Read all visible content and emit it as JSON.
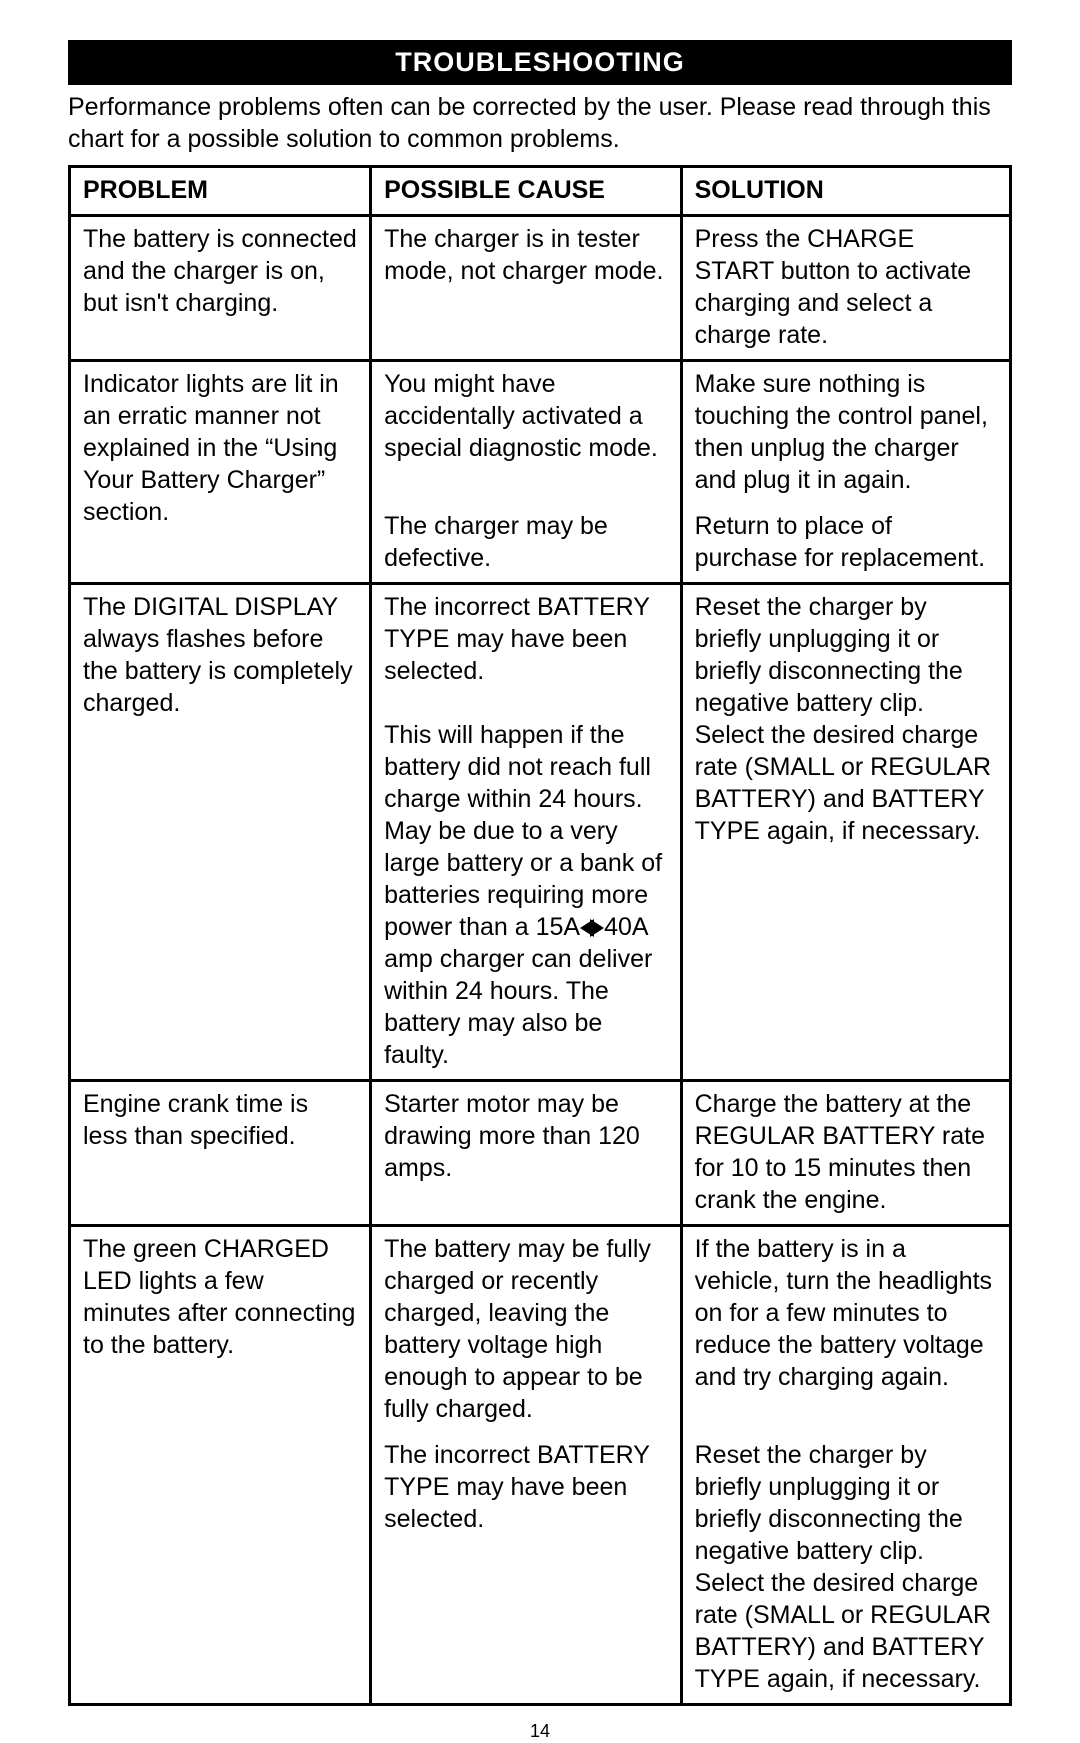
{
  "section_title": "TROUBLESHOOTING",
  "intro": "Performance problems often can be corrected by the user. Please read through this chart for a possible solution to common problems.",
  "headers": {
    "problem": "PROBLEM",
    "cause": "POSSIBLE CAUSE",
    "solution": "SOLUTION"
  },
  "rows": {
    "r1": {
      "problem": "The battery is connected and the charger is on, but isn't charging.",
      "cause": "The charger is in tester mode, not charger mode.",
      "solution": "Press the CHARGE START button to activate charging and select a charge rate."
    },
    "r2a": {
      "problem": "Indicator lights are lit in an erratic manner not explained in the “Using Your Battery Charger” section.",
      "cause": "You might have accidentally activated a special diagnostic mode.",
      "solution": "Make sure nothing is touching the control panel, then unplug the charger and plug it in again."
    },
    "r2b": {
      "cause": "The charger may be defective.",
      "solution": "Return to place of purchase for replacement."
    },
    "r3": {
      "problem": "The DIGITAL DISPLAY always flashes before the battery is completely charged.",
      "cause_p1": "The incorrect BATTERY TYPE may have been selected.",
      "cause_p2a": "This will happen if the battery did not reach full charge within 24 hours. May be due to a very large battery or a bank of batteries requiring more power than a 15A",
      "cause_p2b": "40A amp charger can deliver within 24 hours. The battery may also be faulty.",
      "solution": "Reset the charger by briefly unplugging it or briefly disconnecting the negative battery clip. Select the desired charge rate (SMALL or REGULAR BATTERY) and BATTERY TYPE again, if necessary."
    },
    "r4": {
      "problem": "Engine crank time is less than specified.",
      "cause": "Starter motor may be drawing more than 120 amps.",
      "solution": "Charge the battery at the REGULAR BATTERY rate for 10 to 15 minutes then crank the engine."
    },
    "r5a": {
      "problem": "The green CHARGED LED lights a few minutes after connecting to the battery.",
      "cause": "The battery may be fully charged or recently charged, leaving the battery voltage high enough to appear to be fully charged.",
      "solution": "If the battery is in a vehicle, turn the headlights on for a few minutes to reduce the battery voltage and try charging again."
    },
    "r5b": {
      "cause": "The incorrect BATTERY TYPE may have been selected.",
      "solution": "Reset the charger by briefly unplugging it or briefly disconnecting the negative battery clip. Select the desired charge rate (SMALL or REGULAR BATTERY) and BATTERY TYPE again, if necessary."
    }
  },
  "page_number": "14"
}
